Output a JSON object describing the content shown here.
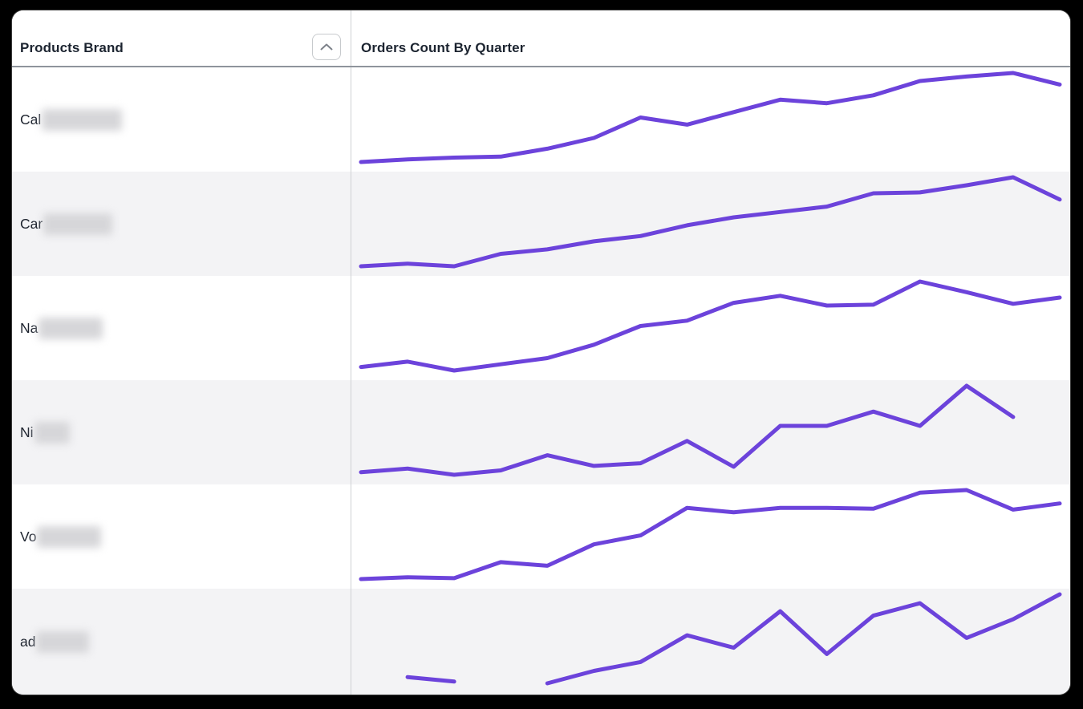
{
  "header": {
    "columns": [
      {
        "label": "Products Brand",
        "sortable": true,
        "sort_icon": "chevron-up"
      },
      {
        "label": "Orders Count By Quarter",
        "sortable": false
      }
    ]
  },
  "table": {
    "rows": [
      {
        "brand_prefix": "Cal",
        "redacted": true,
        "redaction_width": 100
      },
      {
        "brand_prefix": "Car",
        "redacted": true,
        "redaction_width": 86
      },
      {
        "brand_prefix": "Na",
        "redacted": true,
        "redaction_width": 80
      },
      {
        "brand_prefix": "Ni",
        "redacted": true,
        "redaction_width": 44
      },
      {
        "brand_prefix": "Vo",
        "redacted": true,
        "redaction_width": 80
      },
      {
        "brand_prefix": "ad",
        "redacted": true,
        "redaction_width": 66
      }
    ]
  },
  "chart_data": {
    "type": "line",
    "title": "Orders Count By Quarter",
    "x_count": 16,
    "x_axis_note": "16 quarterly periods per sparkline; no tick labels shown in UI",
    "y_note": "no axis labels shown; values normalized 0-100 per row, estimated from sparkline pixels; null = missing data point",
    "legend": "none",
    "grid": false,
    "line_color": "#6C43DB",
    "series": [
      {
        "name": "Cal (redacted)",
        "values": [
          0,
          3,
          5,
          6,
          15,
          27,
          50,
          42,
          56,
          70,
          66,
          75,
          91,
          96,
          100,
          87
        ]
      },
      {
        "name": "Car (redacted)",
        "values": [
          0,
          3,
          0,
          14,
          19,
          28,
          34,
          46,
          55,
          61,
          67,
          82,
          83,
          91,
          100,
          75
        ]
      },
      {
        "name": "Na (redacted)",
        "values": [
          4,
          10,
          0,
          7,
          14,
          29,
          50,
          56,
          76,
          84,
          73,
          74,
          100,
          88,
          75,
          82
        ]
      },
      {
        "name": "Ni (redacted)",
        "values": [
          3,
          7,
          0,
          5,
          22,
          10,
          13,
          38,
          9,
          55,
          55,
          71,
          55,
          100,
          65,
          null
        ]
      },
      {
        "name": "Vo (redacted)",
        "values": [
          0,
          2,
          1,
          19,
          15,
          39,
          49,
          80,
          75,
          80,
          80,
          79,
          97,
          100,
          78,
          85
        ]
      },
      {
        "name": "ad (redacted)",
        "values": [
          null,
          7,
          2,
          null,
          0,
          14,
          24,
          54,
          40,
          81,
          33,
          76,
          90,
          51,
          72,
          100
        ]
      }
    ]
  },
  "colors": {
    "accent": "#6C43DB",
    "row_alt": "#f3f3f5",
    "divider": "#cfd1d4",
    "header_rule": "#8f949c",
    "text": "#1d232e",
    "redaction": "#d6d6d9",
    "frame": "#000000"
  }
}
